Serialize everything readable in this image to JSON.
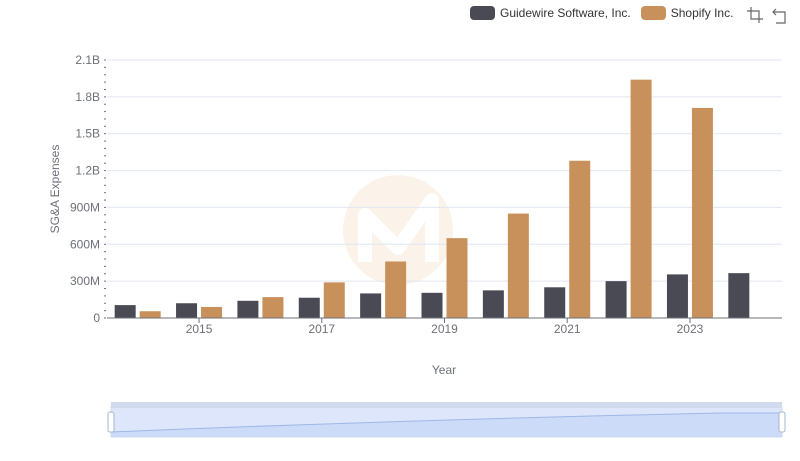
{
  "legend": {
    "items": [
      {
        "label": "Guidewire Software, Inc.",
        "color": "#4a4a55"
      },
      {
        "label": "Shopify Inc.",
        "color": "#c8915b"
      }
    ]
  },
  "toolbar": {
    "icons": [
      "zoom-icon",
      "restore-icon"
    ]
  },
  "chart_data": {
    "type": "bar",
    "title": "",
    "xlabel": "Year",
    "ylabel": "SG&A Expenses",
    "years": [
      2014,
      2015,
      2016,
      2017,
      2018,
      2019,
      2020,
      2021,
      2022,
      2023,
      2024
    ],
    "x_tick_labels": [
      "2015",
      "2017",
      "2019",
      "2021",
      "2023"
    ],
    "y_tick_labels": [
      "0",
      "300M",
      "600M",
      "900M",
      "1.2B",
      "1.5B",
      "1.8B",
      "2.1B"
    ],
    "ylim": [
      0,
      2100000000
    ],
    "series": [
      {
        "name": "Guidewire Software, Inc.",
        "color": "#4a4a55",
        "values": [
          105000000,
          120000000,
          140000000,
          165000000,
          200000000,
          205000000,
          225000000,
          250000000,
          300000000,
          355000000,
          365000000
        ]
      },
      {
        "name": "Shopify Inc.",
        "color": "#c8915b",
        "values": [
          55000000,
          90000000,
          170000000,
          290000000,
          460000000,
          650000000,
          850000000,
          1280000000,
          1940000000,
          1710000000,
          null
        ]
      }
    ],
    "grid": true,
    "legend_position": "top-right"
  }
}
